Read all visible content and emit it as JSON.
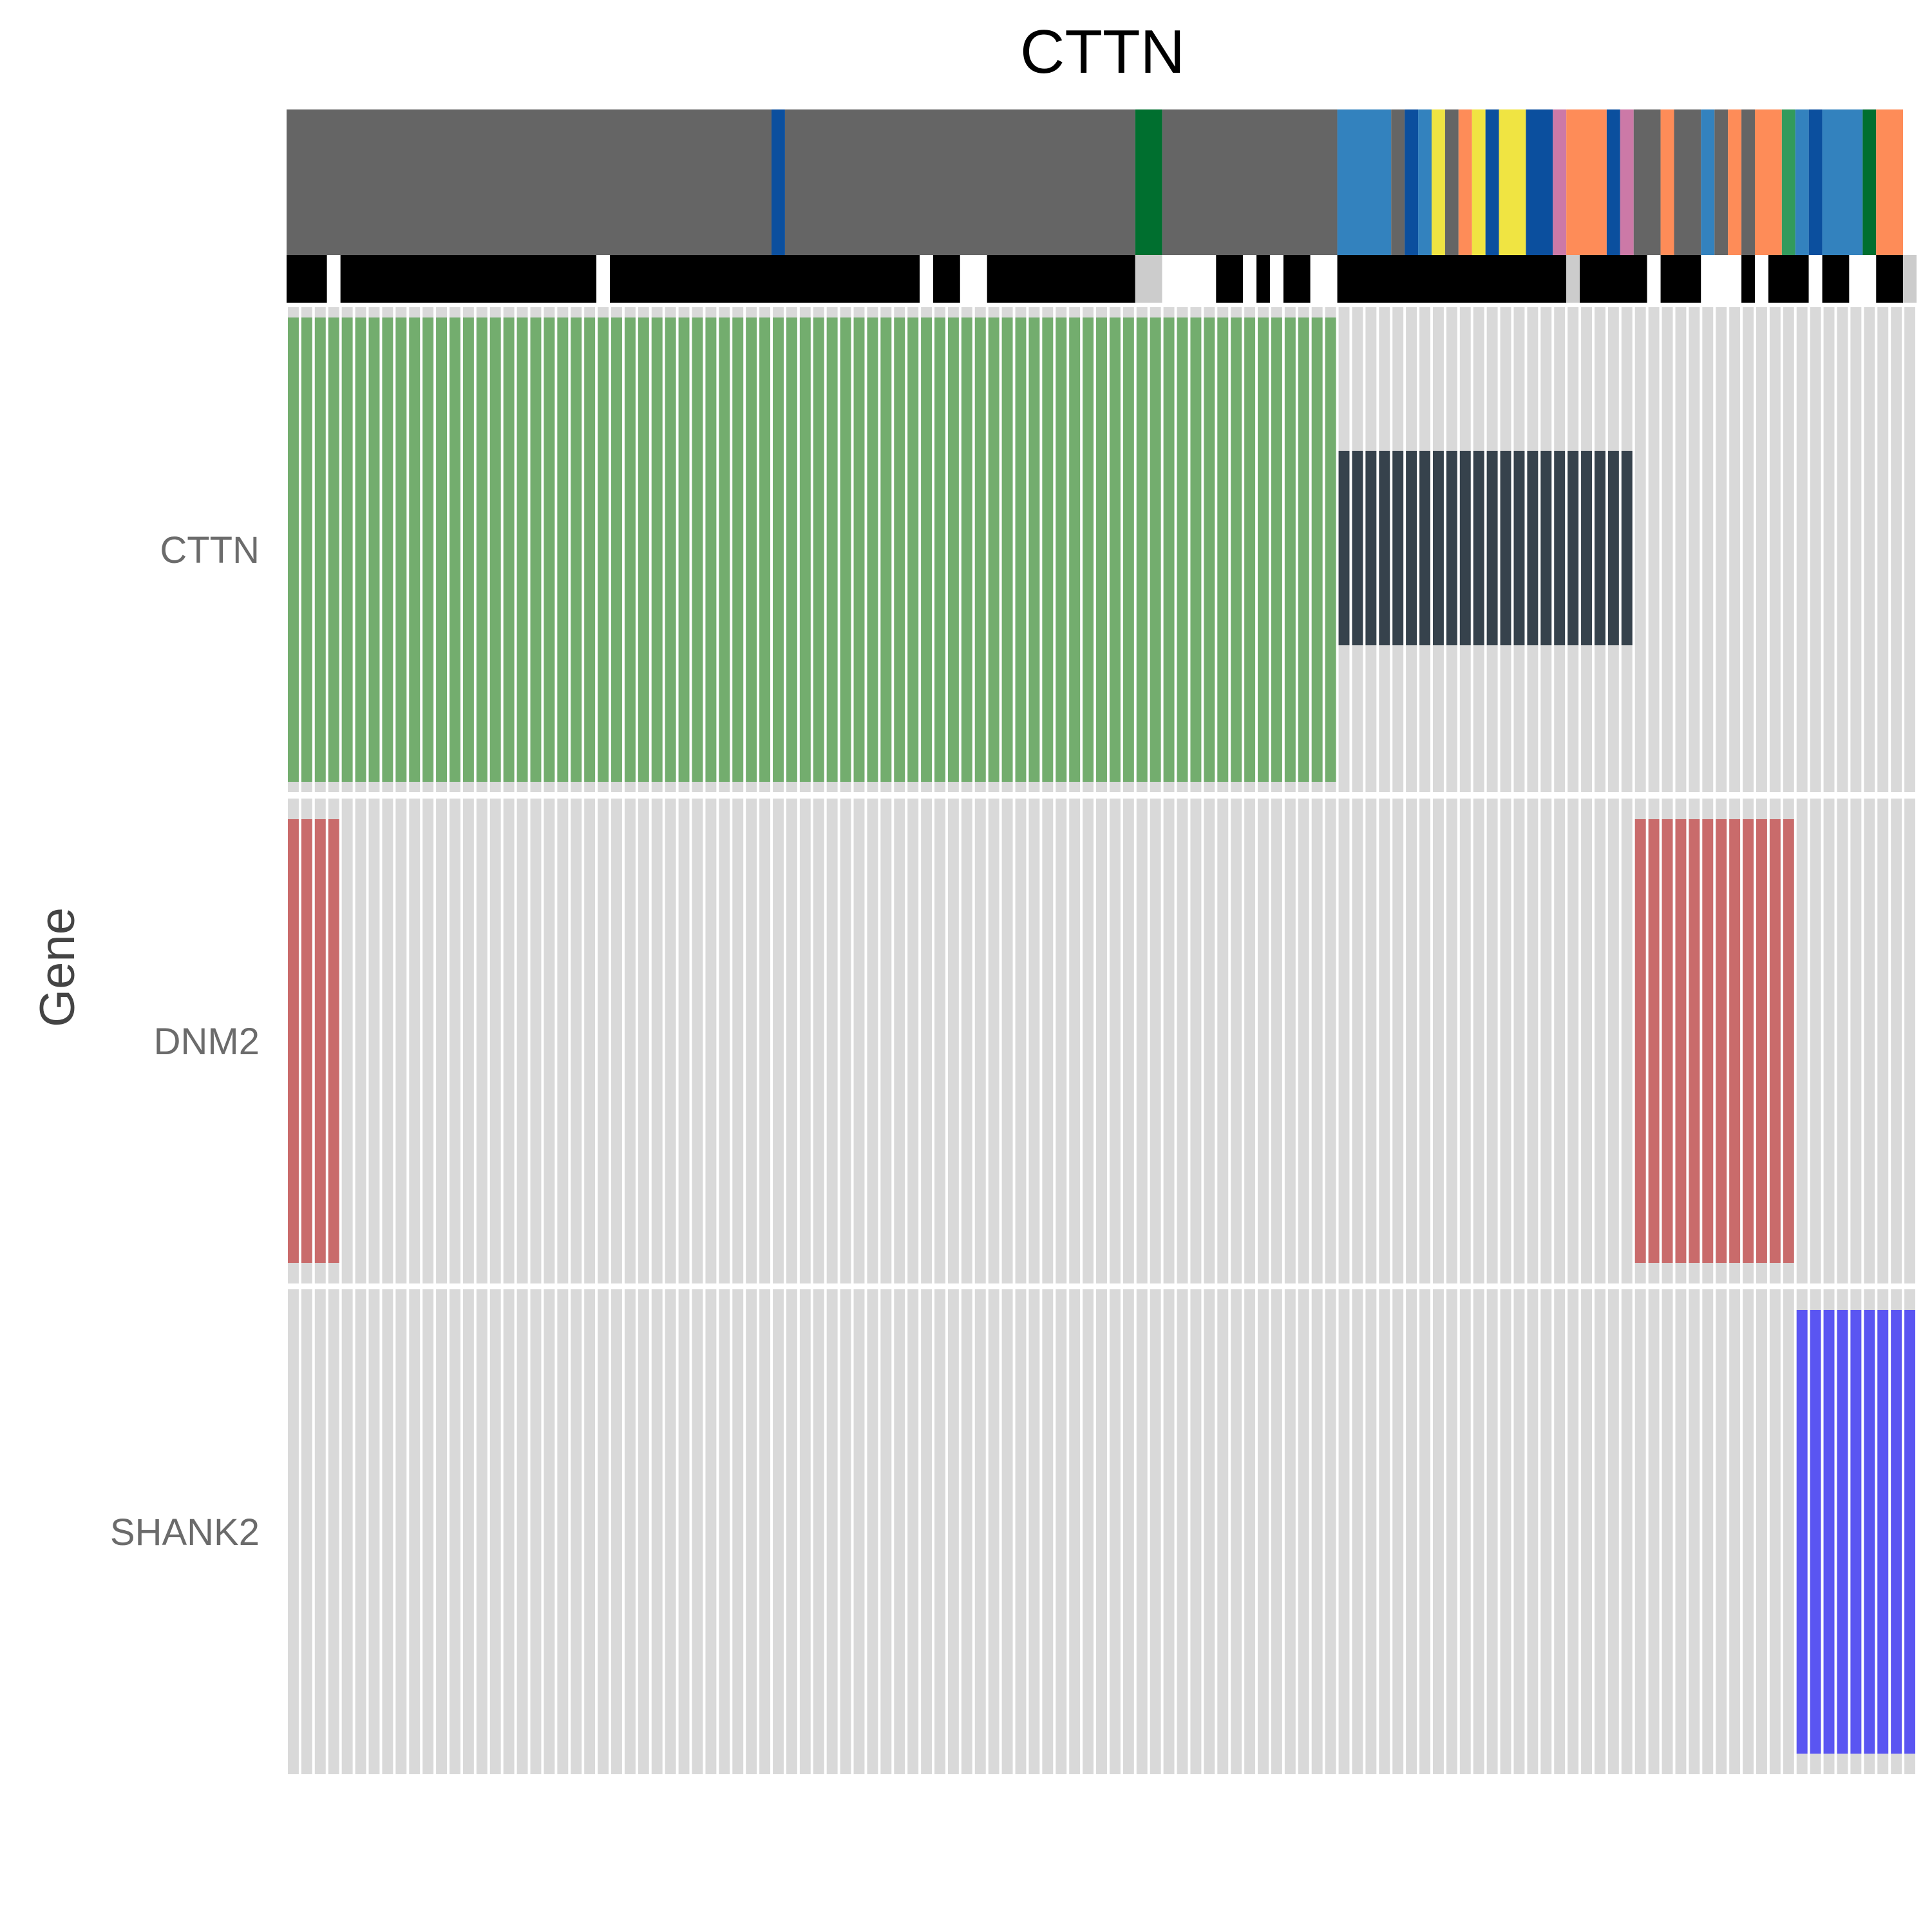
{
  "chart_data": {
    "type": "heatmap",
    "title": "CTTN",
    "ylabel": "Gene",
    "xlabel": "",
    "n_samples": 121,
    "genes": [
      "CTTN",
      "DNM2",
      "SHANK2"
    ],
    "colors": {
      "background_cell": "#d9d9d9",
      "green_alteration": "#73ad6e",
      "dark_alteration": "#36424c",
      "red_alteration": "#c96b6b",
      "blue_alteration": "#5a55f2",
      "bar_black": "#000000",
      "bar_grey": "#cccccc",
      "bar_white": "#ffffff"
    },
    "alterations": [
      {
        "gene": "CTTN",
        "type": "full",
        "color": "#73ad6e",
        "start": 1,
        "end": 78
      },
      {
        "gene": "CTTN",
        "type": "partial",
        "color": "#36424c",
        "start": 79,
        "end": 100
      },
      {
        "gene": "DNM2",
        "type": "partial",
        "color": "#c96b6b",
        "start": 1,
        "end": 4
      },
      {
        "gene": "DNM2",
        "type": "partial",
        "color": "#c96b6b",
        "start": 101,
        "end": 112
      },
      {
        "gene": "SHANK2",
        "type": "partial",
        "color": "#5a55f2",
        "start": 113,
        "end": 121
      }
    ],
    "annotation_track_1": [
      {
        "start": 1,
        "end": 36,
        "color": "#656565"
      },
      {
        "start": 37,
        "end": 37,
        "color": "#0b4f9e"
      },
      {
        "start": 38,
        "end": 63,
        "color": "#656565"
      },
      {
        "start": 64,
        "end": 65,
        "color": "#006f2f"
      },
      {
        "start": 66,
        "end": 78,
        "color": "#656565"
      },
      {
        "start": 79,
        "end": 82,
        "color": "#3382be"
      },
      {
        "start": 83,
        "end": 83,
        "color": "#656565"
      },
      {
        "start": 84,
        "end": 84,
        "color": "#0b4f9e"
      },
      {
        "start": 85,
        "end": 85,
        "color": "#3382be"
      },
      {
        "start": 86,
        "end": 86,
        "color": "#f0e442"
      },
      {
        "start": 87,
        "end": 87,
        "color": "#656565"
      },
      {
        "start": 88,
        "end": 88,
        "color": "#fe8c58"
      },
      {
        "start": 89,
        "end": 89,
        "color": "#f0e442"
      },
      {
        "start": 90,
        "end": 90,
        "color": "#0b4f9e"
      },
      {
        "start": 91,
        "end": 92,
        "color": "#f0e442"
      },
      {
        "start": 93,
        "end": 94,
        "color": "#0b4f9e"
      },
      {
        "start": 95,
        "end": 95,
        "color": "#cc79a7"
      },
      {
        "start": 96,
        "end": 98,
        "color": "#fe8c58"
      },
      {
        "start": 99,
        "end": 99,
        "color": "#0b4f9e"
      },
      {
        "start": 100,
        "end": 100,
        "color": "#cc79a7"
      },
      {
        "start": 101,
        "end": 102,
        "color": "#656565"
      },
      {
        "start": 103,
        "end": 103,
        "color": "#fe8c58"
      },
      {
        "start": 104,
        "end": 105,
        "color": "#656565"
      },
      {
        "start": 106,
        "end": 106,
        "color": "#3382be"
      },
      {
        "start": 107,
        "end": 107,
        "color": "#656565"
      },
      {
        "start": 108,
        "end": 108,
        "color": "#fe8c58"
      },
      {
        "start": 109,
        "end": 109,
        "color": "#656565"
      },
      {
        "start": 110,
        "end": 111,
        "color": "#fe8c58"
      },
      {
        "start": 112,
        "end": 112,
        "color": "#329a5c"
      },
      {
        "start": 113,
        "end": 113,
        "color": "#3382be"
      },
      {
        "start": 114,
        "end": 114,
        "color": "#0b4f9e"
      },
      {
        "start": 115,
        "end": 117,
        "color": "#3382be"
      },
      {
        "start": 118,
        "end": 118,
        "color": "#006f2f"
      },
      {
        "start": 119,
        "end": 120,
        "color": "#fe8c58"
      }
    ],
    "annotation_track_2": [
      {
        "start": 1,
        "end": 3,
        "color": "#000000"
      },
      {
        "start": 4,
        "end": 4,
        "color": "#ffffff"
      },
      {
        "start": 5,
        "end": 23,
        "color": "#000000"
      },
      {
        "start": 24,
        "end": 24,
        "color": "#ffffff"
      },
      {
        "start": 25,
        "end": 47,
        "color": "#000000"
      },
      {
        "start": 48,
        "end": 48,
        "color": "#ffffff"
      },
      {
        "start": 49,
        "end": 50,
        "color": "#000000"
      },
      {
        "start": 51,
        "end": 52,
        "color": "#ffffff"
      },
      {
        "start": 53,
        "end": 63,
        "color": "#000000"
      },
      {
        "start": 64,
        "end": 65,
        "color": "#cccccc"
      },
      {
        "start": 66,
        "end": 69,
        "color": "#ffffff"
      },
      {
        "start": 70,
        "end": 71,
        "color": "#000000"
      },
      {
        "start": 72,
        "end": 72,
        "color": "#ffffff"
      },
      {
        "start": 73,
        "end": 73,
        "color": "#000000"
      },
      {
        "start": 74,
        "end": 74,
        "color": "#ffffff"
      },
      {
        "start": 75,
        "end": 76,
        "color": "#000000"
      },
      {
        "start": 77,
        "end": 78,
        "color": "#ffffff"
      },
      {
        "start": 79,
        "end": 95,
        "color": "#000000"
      },
      {
        "start": 96,
        "end": 96,
        "color": "#cccccc"
      },
      {
        "start": 97,
        "end": 101,
        "color": "#000000"
      },
      {
        "start": 102,
        "end": 102,
        "color": "#ffffff"
      },
      {
        "start": 103,
        "end": 105,
        "color": "#000000"
      },
      {
        "start": 106,
        "end": 108,
        "color": "#ffffff"
      },
      {
        "start": 109,
        "end": 109,
        "color": "#000000"
      },
      {
        "start": 110,
        "end": 110,
        "color": "#ffffff"
      },
      {
        "start": 111,
        "end": 113,
        "color": "#000000"
      },
      {
        "start": 114,
        "end": 114,
        "color": "#ffffff"
      },
      {
        "start": 115,
        "end": 116,
        "color": "#000000"
      },
      {
        "start": 117,
        "end": 118,
        "color": "#ffffff"
      },
      {
        "start": 119,
        "end": 120,
        "color": "#000000"
      },
      {
        "start": 121,
        "end": 121,
        "color": "#cccccc"
      }
    ]
  }
}
